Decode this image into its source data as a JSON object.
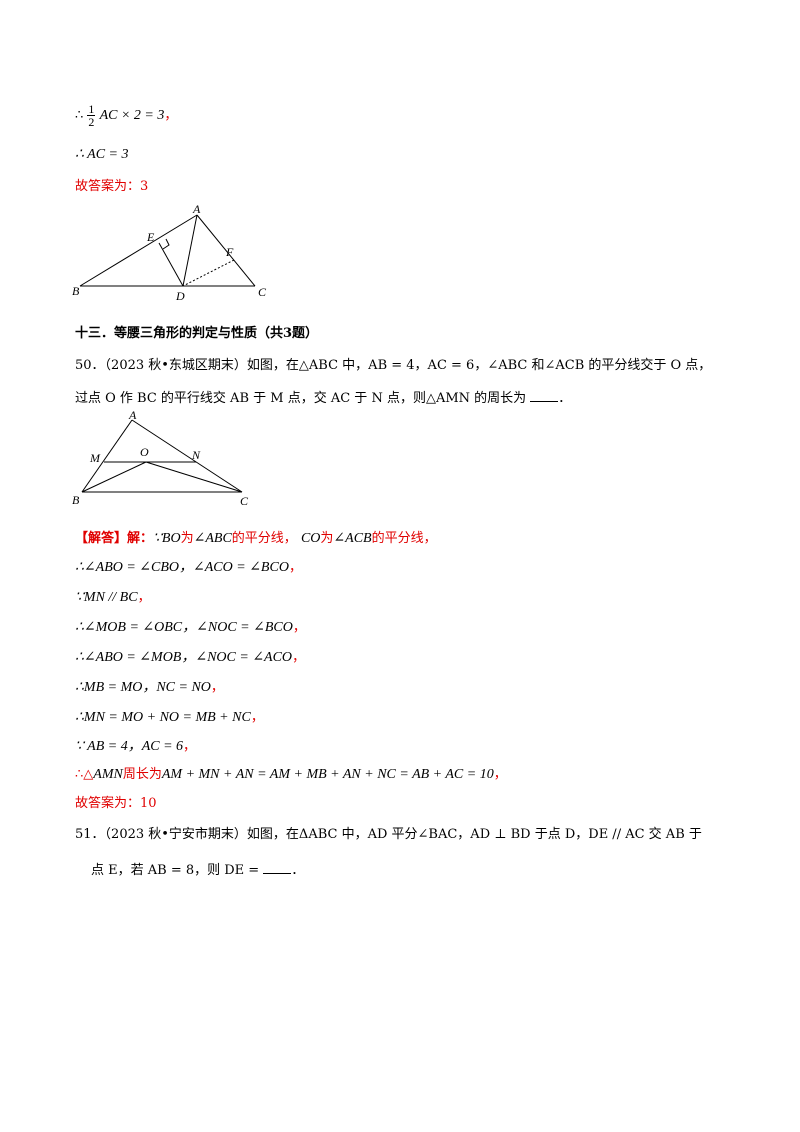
{
  "prev": {
    "line1_therefore": "∴",
    "line1_frac_num": "1",
    "line1_frac_den": "2",
    "line1_expr": "AC × 2 = 3",
    "line1_comma": "，",
    "line2": "∴ AC = 3",
    "answer": "故答案为：3"
  },
  "fig1": {
    "labels": [
      "A",
      "E",
      "F",
      "B",
      "D",
      "C"
    ]
  },
  "section": {
    "title": "十三．等腰三角形的判定与性质（共3题）"
  },
  "q50": {
    "line1": "50．（2023 秋•东城区期末）如图，在△ABC 中，AB = 4，AC = 6，∠ABC 和∠ACB 的平分线交于 O 点，",
    "line2_a": "过点 O 作 BC 的平行线交 AB 于 M 点，交 AC 于 N 点，则△AMN 的周长为",
    "line2_b": "．"
  },
  "fig2": {
    "labels": [
      "A",
      "M",
      "O",
      "N",
      "B",
      "C"
    ]
  },
  "solution": {
    "tag": "【解答】解：",
    "l1_a": "∵BO",
    "l1_b": "为",
    "l1_c": "∠ABC",
    "l1_d": "的平分线，",
    "l1_e": "CO",
    "l1_f": "为",
    "l1_g": "∠ACB",
    "l1_h": "的平分线，",
    "l2": "∴∠ABO = ∠CBO，∠ACO = ∠BCO",
    "l3": "∵MN // BC",
    "l4": "∴∠MOB = ∠OBC，∠NOC = ∠BCO",
    "l5": "∴∠ABO = ∠MOB，∠NOC = ∠ACO",
    "l6": "∴MB = MO，NC = NO",
    "l7": "∴MN = MO + NO = MB + NC",
    "l8": "∵ AB = 4，AC = 6",
    "l9_a": "∴△",
    "l9_b": "AMN",
    "l9_c": "周长为",
    "l9_d": "AM + MN + AN = AM + MB + AN + NC = AB + AC = 10",
    "comma": "，",
    "answer": "故答案为：10"
  },
  "q51": {
    "line1": "51．（2023 秋•宁安市期末）如图，在ΔABC 中，AD 平分∠BAC，AD ⊥ BD 于点 D，DE // AC 交 AB 于",
    "line2_a": "点 E，若 AB = 8，则 DE =",
    "line2_b": "．"
  }
}
